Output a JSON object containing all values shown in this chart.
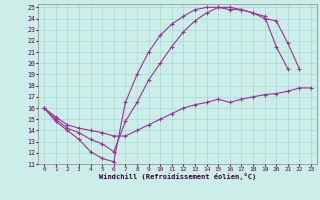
{
  "xlabel": "Windchill (Refroidissement éolien,°C)",
  "bg_color": "#cceee8",
  "grid_color": "#aad8d2",
  "line_color": "#993399",
  "xlim": [
    -0.5,
    23.5
  ],
  "ylim": [
    11,
    25.3
  ],
  "xticks": [
    0,
    1,
    2,
    3,
    4,
    5,
    6,
    7,
    8,
    9,
    10,
    11,
    12,
    13,
    14,
    15,
    16,
    17,
    18,
    19,
    20,
    21,
    22,
    23
  ],
  "yticks": [
    11,
    12,
    13,
    14,
    15,
    16,
    17,
    18,
    19,
    20,
    21,
    22,
    23,
    24,
    25
  ],
  "line1_x": [
    0,
    1,
    2,
    3,
    4,
    5,
    6,
    7,
    8,
    9,
    10,
    11,
    12,
    13,
    14,
    15,
    16,
    17,
    18,
    19,
    20,
    21,
    22
  ],
  "line1_y": [
    16,
    14.8,
    14.0,
    13.2,
    12.1,
    11.5,
    11.2,
    16.5,
    19.0,
    21.0,
    22.5,
    23.5,
    24.2,
    24.8,
    25.0,
    25.0,
    24.8,
    24.8,
    24.5,
    24.2,
    21.5,
    19.5,
    null
  ],
  "line2_x": [
    0,
    1,
    2,
    3,
    4,
    5,
    6,
    7,
    8,
    9,
    10,
    11,
    12,
    13,
    14,
    15,
    16,
    17,
    18,
    19,
    20,
    21,
    22,
    23
  ],
  "line2_y": [
    16,
    15.0,
    14.2,
    13.8,
    13.2,
    12.8,
    12.1,
    14.8,
    16.5,
    18.5,
    20.0,
    21.5,
    22.8,
    23.8,
    24.5,
    25.0,
    25.0,
    24.8,
    24.5,
    24.0,
    23.8,
    21.8,
    19.5,
    null
  ],
  "line3_x": [
    0,
    1,
    2,
    3,
    4,
    5,
    6,
    7,
    8,
    9,
    10,
    11,
    12,
    13,
    14,
    15,
    16,
    17,
    18,
    19,
    20,
    21,
    22,
    23
  ],
  "line3_y": [
    16,
    15.2,
    14.5,
    14.2,
    14.0,
    13.8,
    13.5,
    13.5,
    14.0,
    14.5,
    15.0,
    15.5,
    16.0,
    16.3,
    16.5,
    16.8,
    16.5,
    16.8,
    17.0,
    17.2,
    17.3,
    17.5,
    17.8,
    17.8
  ]
}
